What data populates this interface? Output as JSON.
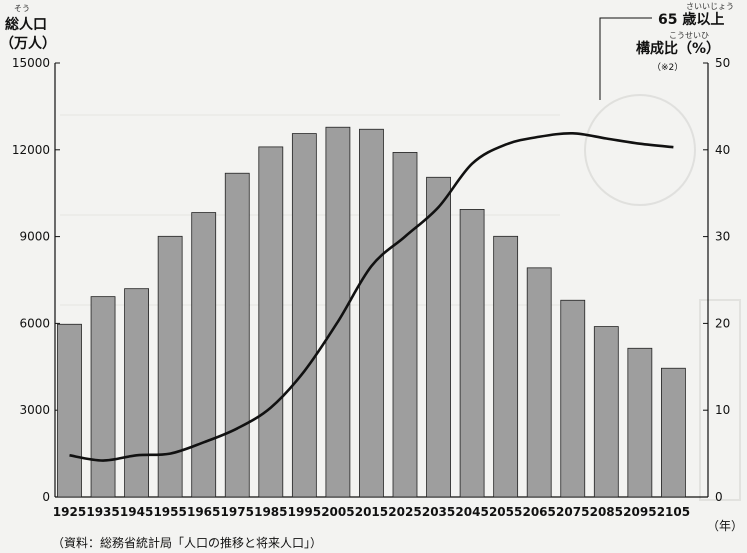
{
  "chart_data": {
    "type": "bar",
    "categories": [
      "1925",
      "1935",
      "1945",
      "1955",
      "1965",
      "1975",
      "1985",
      "1995",
      "2005",
      "2015",
      "2025",
      "2035",
      "2045",
      "2055",
      "2065",
      "2075",
      "2085",
      "2095",
      "2105"
    ],
    "series": [
      {
        "name": "総人口",
        "type": "bar",
        "axis": "left",
        "color": "#9e9e9e",
        "values": [
          5970,
          6925,
          7200,
          9010,
          9830,
          11190,
          12100,
          12560,
          12780,
          12710,
          11910,
          11050,
          9940,
          9010,
          7920,
          6800,
          5890,
          5140,
          4450
        ]
      },
      {
        "name": "65歳以上構成比",
        "type": "line",
        "axis": "right",
        "color": "#111111",
        "values": [
          4.8,
          4.2,
          4.8,
          5.0,
          6.3,
          7.9,
          10.3,
          14.5,
          20.2,
          26.6,
          30.0,
          33.4,
          38.4,
          40.6,
          41.5,
          41.9,
          41.3,
          40.7,
          40.3
        ]
      }
    ],
    "left_axis": {
      "label_line1": "総人口",
      "label_line2": "（万人）",
      "ruby": "そう",
      "ylim": [
        0,
        15000
      ],
      "ticks": [
        0,
        3000,
        6000,
        9000,
        12000,
        15000
      ]
    },
    "right_axis": {
      "label_line1": "65 歳以上",
      "label_ruby1": "さいいじょう",
      "label_line2": "構成比（%）",
      "label_ruby2": "こうせいひ",
      "note": "（※2）",
      "ylim": [
        0,
        50
      ],
      "ticks": [
        0,
        10,
        20,
        30,
        40,
        50
      ]
    },
    "x_unit": "（年）",
    "source": "（資料：総務省統計局「人口の推移と将来人口」）",
    "grid": false
  }
}
